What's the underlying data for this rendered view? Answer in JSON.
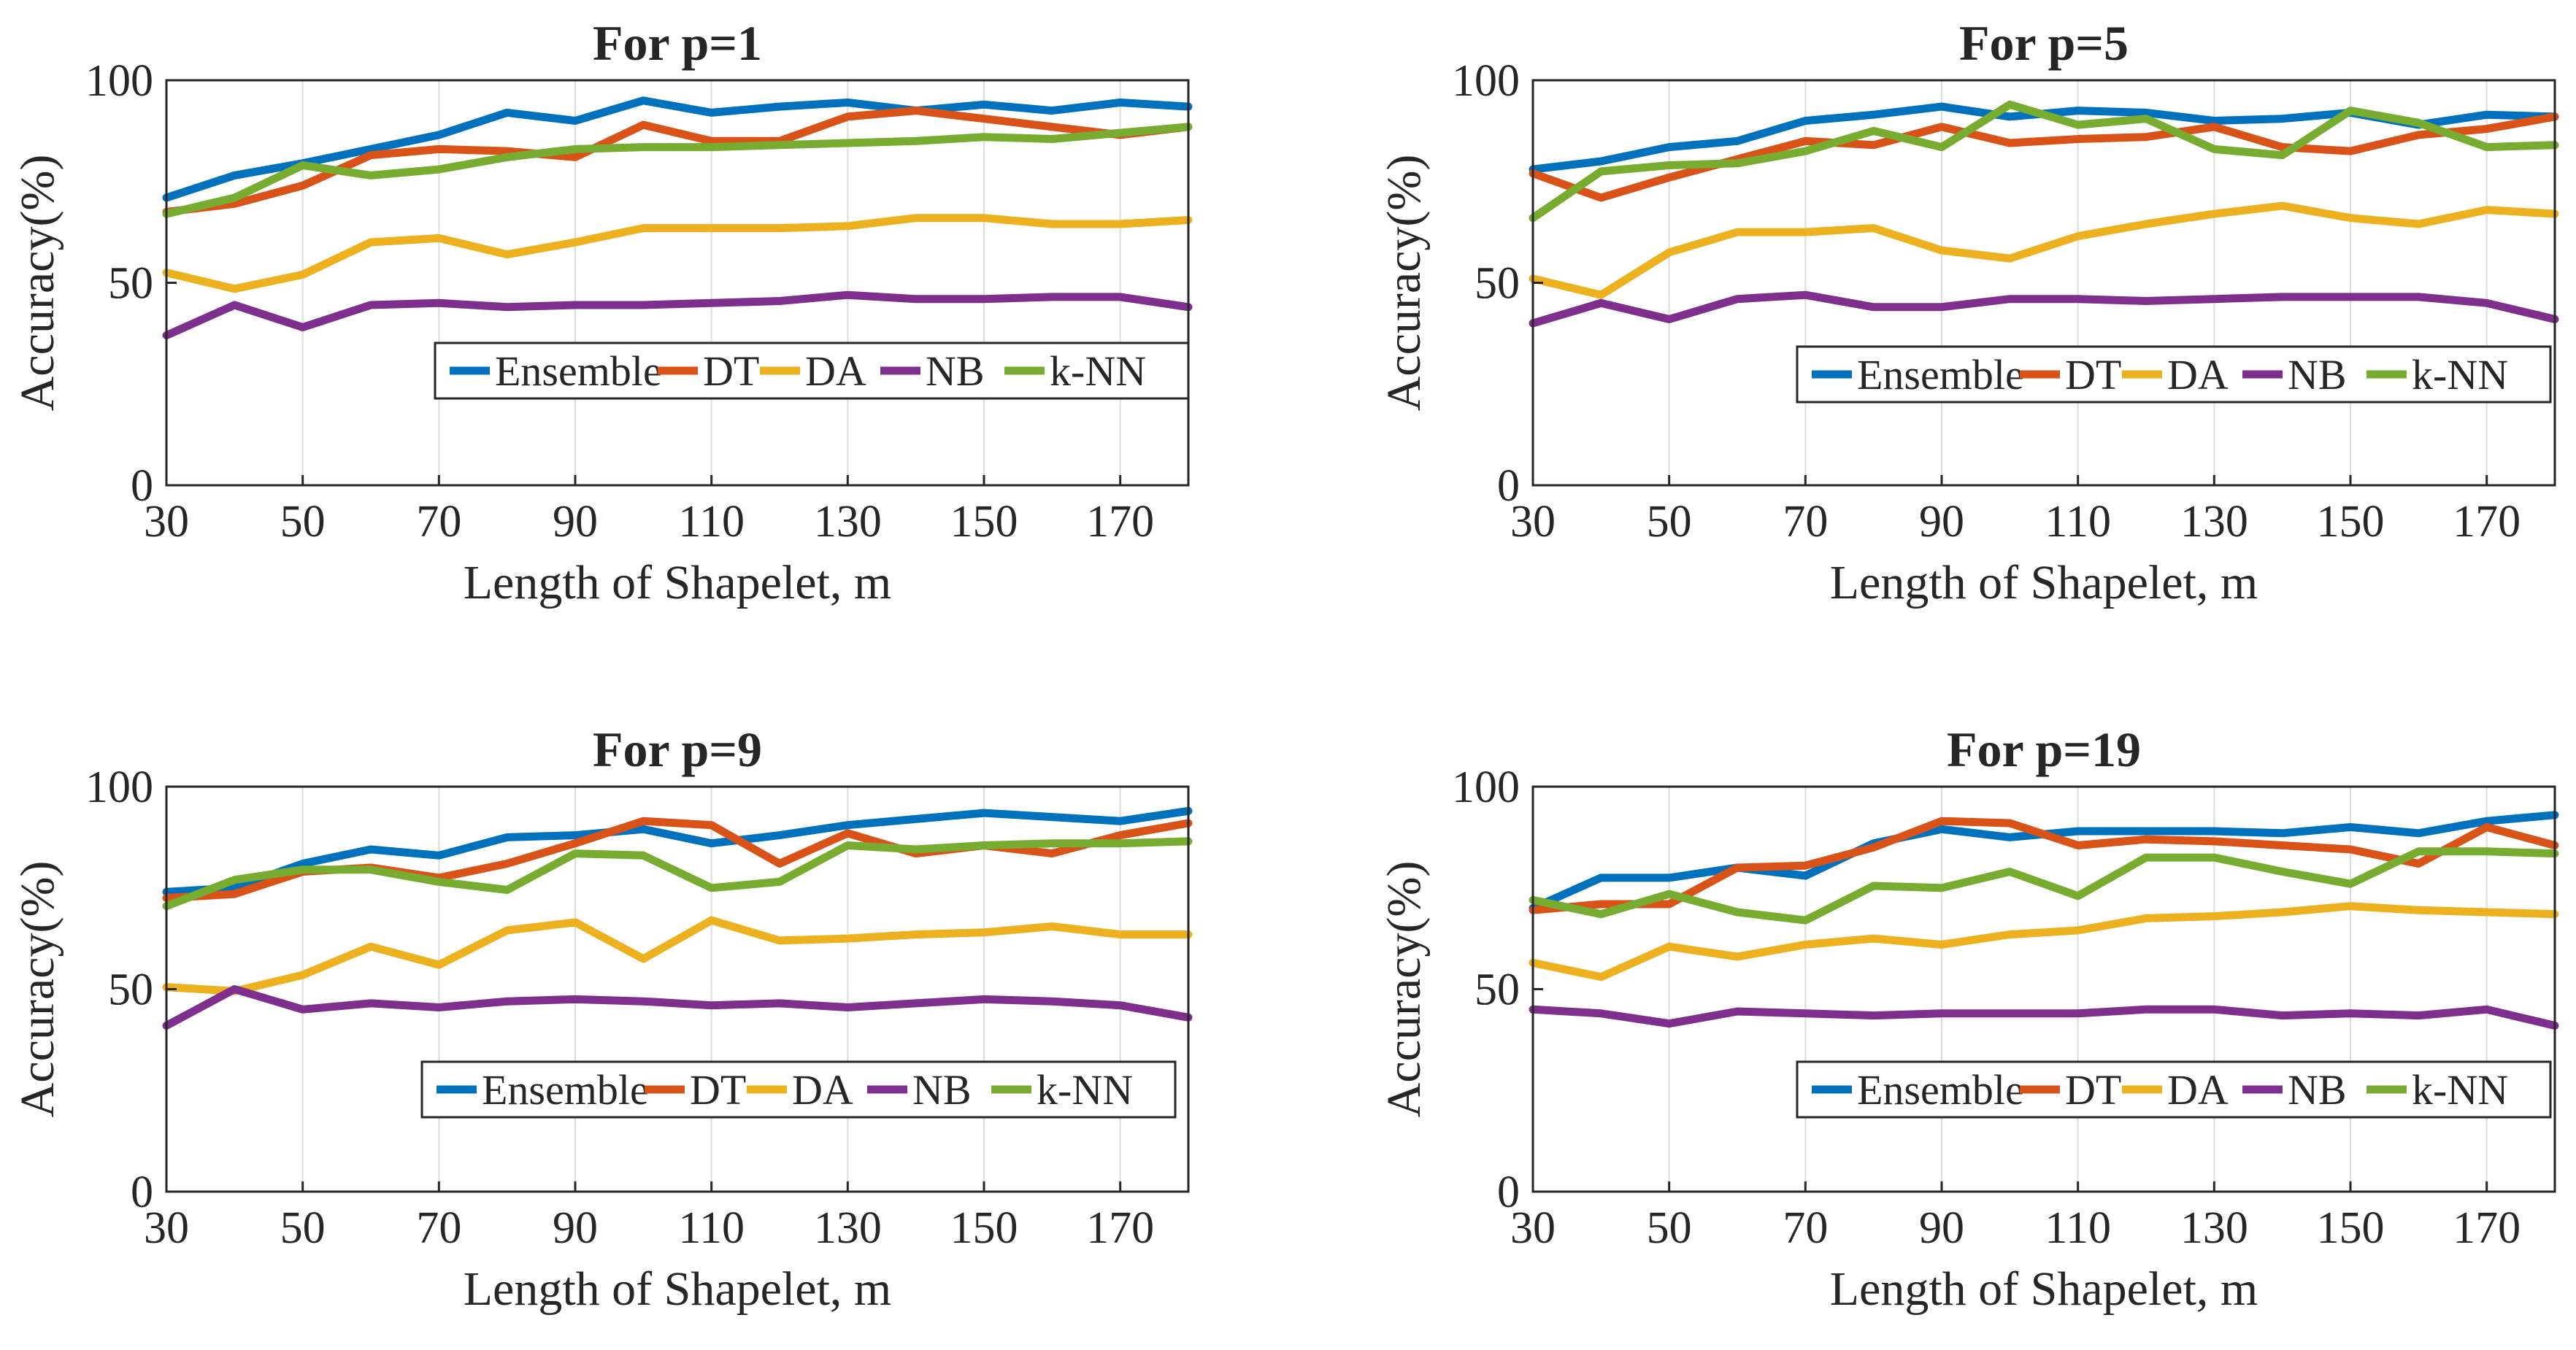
{
  "colors": {
    "Ensemble": "#0072BD",
    "DT": "#D95319",
    "DA": "#EDB120",
    "NB": "#7E2F8E",
    "k-NN": "#77AC30"
  },
  "chart_data": [
    {
      "type": "line",
      "title": "For p=1",
      "xlabel": "Length of Shapelet, m",
      "ylabel": "Accuracy(%)",
      "xlim": [
        30,
        180
      ],
      "ylim": [
        0,
        100
      ],
      "xticks": [
        30,
        50,
        70,
        90,
        110,
        130,
        150,
        170
      ],
      "yticks": [
        0,
        50,
        100
      ],
      "grid": "vertical",
      "legend": {
        "placement": "center-right",
        "entries": [
          "Ensemble",
          "DT",
          "DA",
          "NB",
          "k-NN"
        ]
      },
      "x": [
        30,
        40,
        50,
        60,
        70,
        80,
        90,
        100,
        110,
        120,
        130,
        140,
        150,
        160,
        170,
        180
      ],
      "series": [
        {
          "name": "Ensemble",
          "values": [
            71,
            76.5,
            79.5,
            83,
            86.5,
            92,
            90,
            95,
            92,
            93.5,
            94.5,
            92.5,
            94,
            92.5,
            94.5,
            93.5
          ]
        },
        {
          "name": "DT",
          "values": [
            67.5,
            69.5,
            74,
            81.5,
            83,
            82.5,
            81,
            89,
            85,
            85,
            91,
            92.5,
            90.5,
            88.5,
            86.5,
            88.5
          ]
        },
        {
          "name": "DA",
          "values": [
            52.5,
            48.5,
            52,
            60,
            61,
            57,
            60,
            63.5,
            63.5,
            63.5,
            64,
            66,
            66,
            64.5,
            64.5,
            65.5
          ]
        },
        {
          "name": "NB",
          "values": [
            37,
            44.5,
            39,
            44.5,
            45,
            44,
            44.5,
            44.5,
            45,
            45.5,
            47,
            46,
            46,
            46.5,
            46.5,
            44
          ]
        },
        {
          "name": "k-NN",
          "values": [
            67,
            71,
            79,
            76.5,
            78,
            81,
            83,
            83.5,
            83.5,
            84,
            84.5,
            85,
            86,
            85.5,
            87,
            88.5
          ]
        }
      ]
    },
    {
      "type": "line",
      "title": "For p=5",
      "xlabel": "Length of Shapelet, m",
      "ylabel": "Accuracy(%)",
      "xlim": [
        30,
        180
      ],
      "ylim": [
        0,
        100
      ],
      "xticks": [
        30,
        50,
        70,
        90,
        110,
        130,
        150,
        170
      ],
      "yticks": [
        0,
        50,
        100
      ],
      "grid": "vertical",
      "legend": {
        "placement": "center-right",
        "entries": [
          "Ensemble",
          "DT",
          "DA",
          "NB",
          "k-NN"
        ]
      },
      "x": [
        30,
        40,
        50,
        60,
        70,
        80,
        90,
        100,
        110,
        120,
        130,
        140,
        150,
        160,
        170,
        180
      ],
      "series": [
        {
          "name": "Ensemble",
          "values": [
            78,
            80,
            83.5,
            85,
            90,
            91.5,
            93.5,
            91,
            92.5,
            92,
            90,
            90.5,
            92,
            89,
            91.5,
            91
          ]
        },
        {
          "name": "DT",
          "values": [
            77,
            71,
            76,
            80.5,
            85,
            84,
            88.5,
            84.5,
            85.5,
            86,
            88.5,
            83.5,
            82.5,
            86.5,
            88,
            91
          ]
        },
        {
          "name": "DA",
          "values": [
            51,
            47,
            57.5,
            62.5,
            62.5,
            63.5,
            58,
            56,
            61.5,
            64.5,
            67,
            69,
            66,
            64.5,
            68,
            67
          ]
        },
        {
          "name": "NB",
          "values": [
            40,
            45,
            41,
            46,
            47,
            44,
            44,
            46,
            46,
            45.5,
            46,
            46.5,
            46.5,
            46.5,
            45,
            41
          ]
        },
        {
          "name": "k-NN",
          "values": [
            66,
            77.5,
            79,
            79.5,
            82.5,
            87.5,
            83.5,
            94,
            89,
            90.5,
            83,
            81.5,
            92.5,
            89.5,
            83.5,
            84
          ]
        }
      ]
    },
    {
      "type": "line",
      "title": "For p=9",
      "xlabel": "Length of Shapelet, m",
      "ylabel": "Accuracy(%)",
      "xlim": [
        30,
        180
      ],
      "ylim": [
        0,
        100
      ],
      "xticks": [
        30,
        50,
        70,
        90,
        110,
        130,
        150,
        170
      ],
      "yticks": [
        0,
        50,
        100
      ],
      "grid": "vertical",
      "legend": {
        "placement": "center-right",
        "entries": [
          "Ensemble",
          "DT",
          "DA",
          "NB",
          "k-NN"
        ]
      },
      "x": [
        30,
        40,
        50,
        60,
        70,
        80,
        90,
        100,
        110,
        120,
        130,
        140,
        150,
        160,
        170,
        180
      ],
      "series": [
        {
          "name": "Ensemble",
          "values": [
            74,
            75,
            81,
            84.5,
            83,
            87.5,
            88,
            89.5,
            86,
            88,
            90.5,
            92,
            93.5,
            92.5,
            91.5,
            94
          ]
        },
        {
          "name": "DT",
          "values": [
            72.5,
            73.5,
            79,
            80,
            77.5,
            81,
            86,
            91.5,
            90.5,
            81,
            88.5,
            83.5,
            85.5,
            83.5,
            88,
            91
          ]
        },
        {
          "name": "DA",
          "values": [
            50.5,
            49.5,
            53.5,
            60.5,
            56,
            64.5,
            66.5,
            57.5,
            67,
            62,
            62.5,
            63.5,
            64,
            65.5,
            63.5,
            63.5
          ]
        },
        {
          "name": "NB",
          "values": [
            41,
            50,
            45,
            46.5,
            45.5,
            47,
            47.5,
            47,
            46,
            46.5,
            45.5,
            46.5,
            47.5,
            47,
            46,
            43
          ]
        },
        {
          "name": "k-NN",
          "values": [
            70.5,
            77,
            79.5,
            79.5,
            76.5,
            74.5,
            83.5,
            83,
            75,
            76.5,
            85.5,
            84.5,
            85.5,
            86,
            86,
            86.5
          ]
        }
      ]
    },
    {
      "type": "line",
      "title": "For p=19",
      "xlabel": "Length of Shapelet, m",
      "ylabel": "Accuracy(%)",
      "xlim": [
        30,
        180
      ],
      "ylim": [
        0,
        100
      ],
      "xticks": [
        30,
        50,
        70,
        90,
        110,
        130,
        150,
        170
      ],
      "yticks": [
        0,
        50,
        100
      ],
      "grid": "vertical",
      "legend": {
        "placement": "center-right",
        "entries": [
          "Ensemble",
          "DT",
          "DA",
          "NB",
          "k-NN"
        ]
      },
      "x": [
        30,
        40,
        50,
        60,
        70,
        80,
        90,
        100,
        110,
        120,
        130,
        140,
        150,
        160,
        170,
        180
      ],
      "series": [
        {
          "name": "Ensemble",
          "values": [
            70,
            77.5,
            77.5,
            80,
            78,
            86,
            89.5,
            87.5,
            89,
            89,
            89,
            88.5,
            90,
            88.5,
            91.5,
            93
          ]
        },
        {
          "name": "DT",
          "values": [
            69.5,
            71,
            71,
            80,
            80.5,
            85,
            91.5,
            91,
            85.5,
            87,
            86.5,
            85.5,
            84.5,
            81,
            90,
            85.5
          ]
        },
        {
          "name": "DA",
          "values": [
            56.5,
            53,
            60.5,
            58,
            61,
            62.5,
            61,
            63.5,
            64.5,
            67.5,
            68,
            69,
            70.5,
            69.5,
            69,
            68.5
          ]
        },
        {
          "name": "NB",
          "values": [
            45,
            44,
            41.5,
            44.5,
            44,
            43.5,
            44,
            44,
            44,
            45,
            45,
            43.5,
            44,
            43.5,
            45,
            41
          ]
        },
        {
          "name": "k-NN",
          "values": [
            72,
            68.5,
            73.5,
            69,
            67,
            75.5,
            75,
            79,
            73,
            82.5,
            82.5,
            79,
            76,
            84,
            84,
            83.5
          ]
        }
      ]
    }
  ]
}
